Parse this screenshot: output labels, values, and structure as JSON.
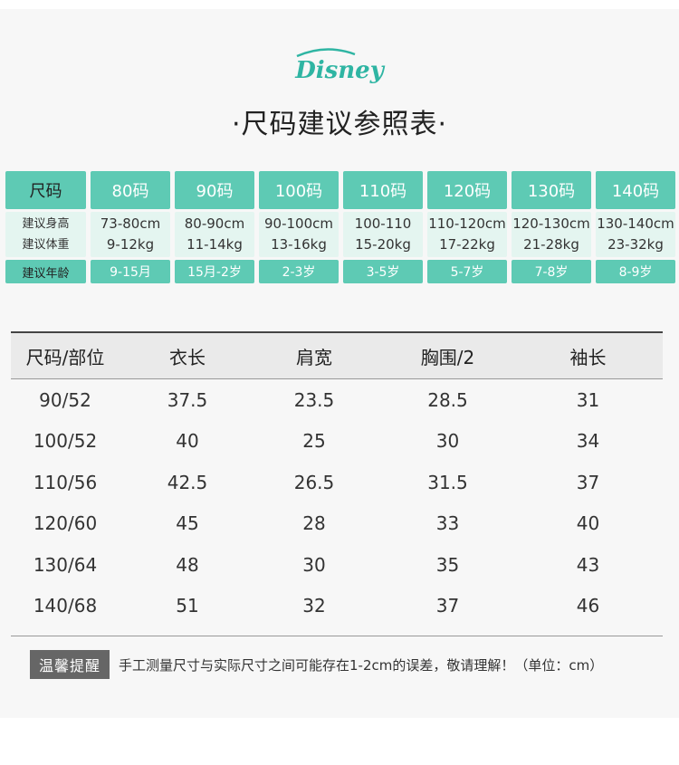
{
  "brand": "Disney",
  "title": "·尺码建议参照表·",
  "recommend": {
    "row_labels": {
      "size": "尺码",
      "height": "建议身高",
      "weight": "建议体重",
      "age": "建议年龄"
    },
    "columns": [
      {
        "size": "80码",
        "height": "73-80cm",
        "weight": "9-12kg",
        "age": "9-15月"
      },
      {
        "size": "90码",
        "height": "80-90cm",
        "weight": "11-14kg",
        "age": "15月-2岁"
      },
      {
        "size": "100码",
        "height": "90-100cm",
        "weight": "13-16kg",
        "age": "2-3岁"
      },
      {
        "size": "110码",
        "height": "100-110",
        "weight": "15-20kg",
        "age": "3-5岁"
      },
      {
        "size": "120码",
        "height": "110-120cm",
        "weight": "17-22kg",
        "age": "5-7岁"
      },
      {
        "size": "130码",
        "height": "120-130cm",
        "weight": "21-28kg",
        "age": "7-8岁"
      },
      {
        "size": "140码",
        "height": "130-140cm",
        "weight": "23-32kg",
        "age": "8-9岁"
      }
    ]
  },
  "measure": {
    "headers": [
      "尺码/部位",
      "衣长",
      "肩宽",
      "胸围/2",
      "袖长"
    ],
    "rows": [
      [
        "90/52",
        "37.5",
        "23.5",
        "28.5",
        "31"
      ],
      [
        "100/52",
        "40",
        "25",
        "30",
        "34"
      ],
      [
        "110/56",
        "42.5",
        "26.5",
        "31.5",
        "37"
      ],
      [
        "120/60",
        "45",
        "28",
        "33",
        "40"
      ],
      [
        "130/64",
        "48",
        "30",
        "35",
        "43"
      ],
      [
        "140/68",
        "51",
        "32",
        "37",
        "46"
      ]
    ]
  },
  "tip": {
    "badge": "温馨提醒",
    "text": "手工测量尺寸与实际尺寸之间可能存在1-2cm的误差，敬请理解！（单位：cm）"
  },
  "colors": {
    "accent": "#5ecab4",
    "light": "#e4f5f0",
    "logo": "#2fb5a3"
  }
}
